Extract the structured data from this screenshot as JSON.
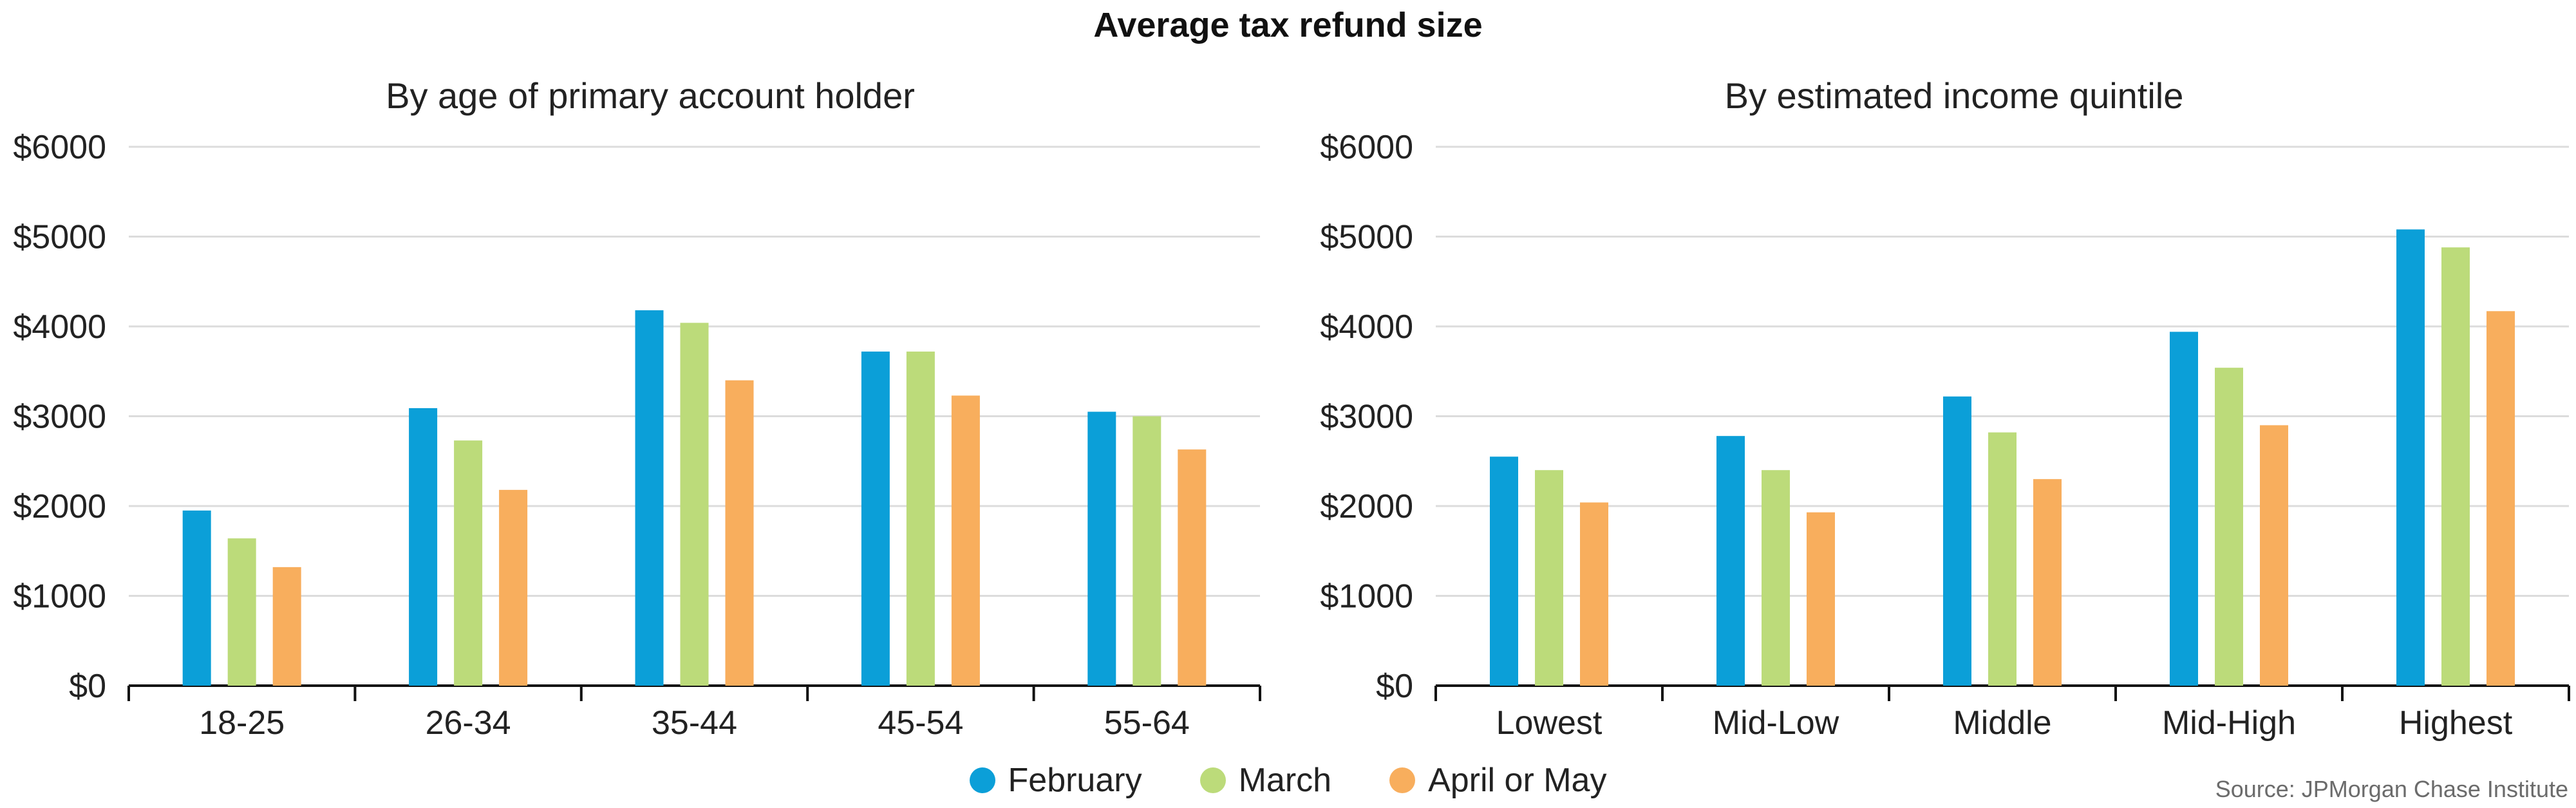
{
  "title": "Average tax refund size",
  "source": "Source: JPMorgan Chase Institute",
  "colors": {
    "February": "#0b9fd8",
    "March": "#bcdb7a",
    "April or May": "#f8ae5d",
    "grid": "#dcdcdc"
  },
  "legend": [
    {
      "label": "February",
      "color": "#0b9fd8"
    },
    {
      "label": "March",
      "color": "#bcdb7a"
    },
    {
      "label": "April or May",
      "color": "#f8ae5d"
    }
  ],
  "chart_data": [
    {
      "type": "bar",
      "title": "By age of primary account holder",
      "categories": [
        "18-25",
        "26-34",
        "35-44",
        "45-54",
        "55-64"
      ],
      "series": [
        {
          "name": "February",
          "values": [
            1950,
            3090,
            4180,
            3720,
            3050
          ]
        },
        {
          "name": "March",
          "values": [
            1640,
            2730,
            4040,
            3720,
            3000
          ]
        },
        {
          "name": "April or May",
          "values": [
            1320,
            2180,
            3400,
            3230,
            2630
          ]
        }
      ],
      "ylim": [
        0,
        6000
      ],
      "yticks": [
        0,
        1000,
        2000,
        3000,
        4000,
        5000,
        6000
      ],
      "ytick_labels": [
        "$0",
        "$1000",
        "$2000",
        "$3000",
        "$4000",
        "$5000",
        "$6000"
      ],
      "grid": true,
      "legend_position": "bottom-center"
    },
    {
      "type": "bar",
      "title": "By estimated income quintile",
      "categories": [
        "Lowest",
        "Mid-Low",
        "Middle",
        "Mid-High",
        "Highest"
      ],
      "series": [
        {
          "name": "February",
          "values": [
            2550,
            2780,
            3220,
            3940,
            5080
          ]
        },
        {
          "name": "March",
          "values": [
            2400,
            2400,
            2820,
            3540,
            4880
          ]
        },
        {
          "name": "April or May",
          "values": [
            2040,
            1930,
            2300,
            2900,
            4170
          ]
        }
      ],
      "ylim": [
        0,
        6000
      ],
      "yticks": [
        0,
        1000,
        2000,
        3000,
        4000,
        5000,
        6000
      ],
      "ytick_labels": [
        "$0",
        "$1000",
        "$2000",
        "$3000",
        "$4000",
        "$5000",
        "$6000"
      ],
      "grid": true,
      "legend_position": "bottom-center"
    }
  ]
}
